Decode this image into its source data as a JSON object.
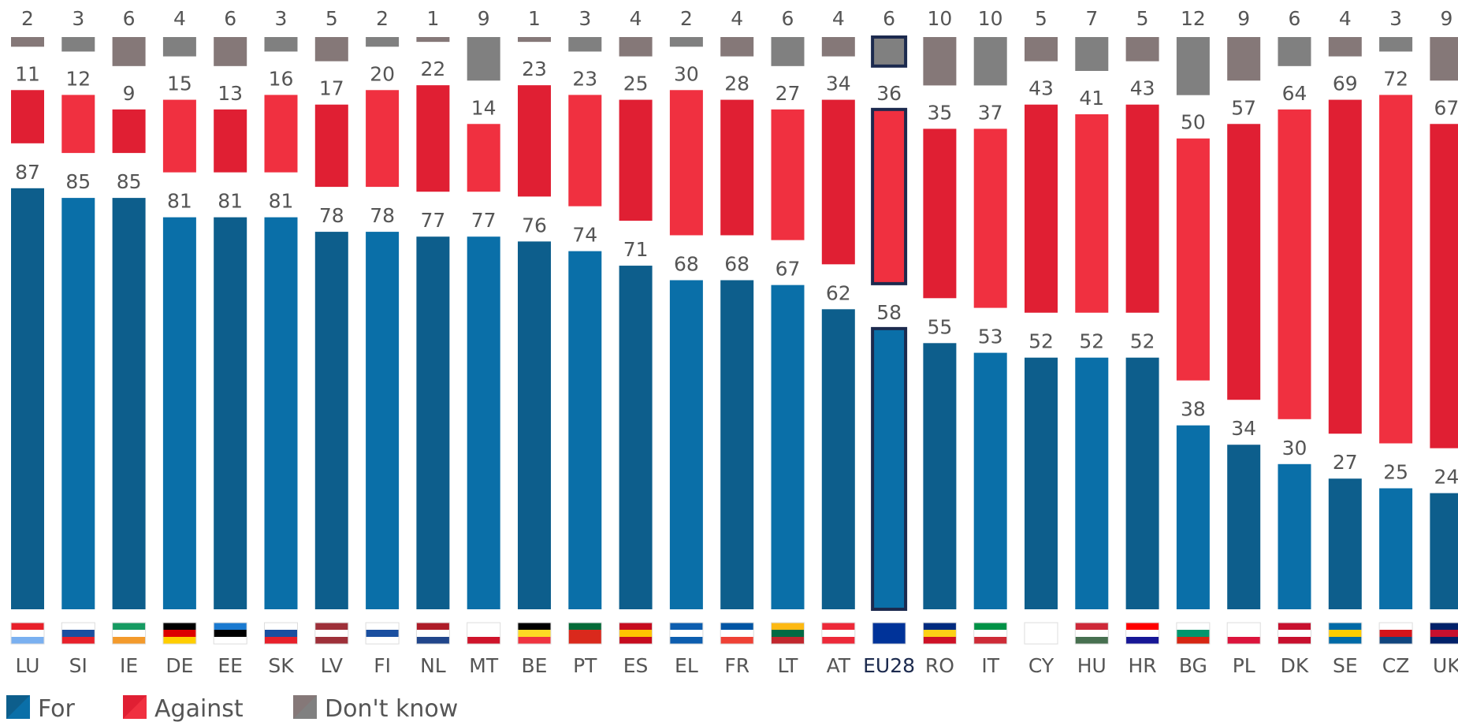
{
  "chart_data": {
    "type": "bar",
    "categories": [
      "LU",
      "SI",
      "IE",
      "DE",
      "EE",
      "SK",
      "LV",
      "FI",
      "NL",
      "MT",
      "BE",
      "PT",
      "ES",
      "EL",
      "FR",
      "LT",
      "AT",
      "EU28",
      "RO",
      "IT",
      "CY",
      "HU",
      "HR",
      "BG",
      "PL",
      "DK",
      "SE",
      "CZ",
      "UK"
    ],
    "series": [
      {
        "name": "For",
        "color": "#0d5e8c",
        "values": [
          87,
          85,
          85,
          81,
          81,
          81,
          78,
          78,
          77,
          77,
          76,
          74,
          71,
          68,
          68,
          67,
          62,
          58,
          55,
          53,
          52,
          52,
          52,
          38,
          34,
          30,
          27,
          25,
          24
        ]
      },
      {
        "name": "Against",
        "color": "#e01f33",
        "values": [
          11,
          12,
          9,
          15,
          13,
          16,
          17,
          20,
          22,
          14,
          23,
          23,
          25,
          30,
          28,
          27,
          34,
          36,
          35,
          37,
          43,
          41,
          43,
          50,
          57,
          64,
          69,
          72,
          67
        ]
      },
      {
        "name": "Don't know",
        "color": "#857878",
        "values": [
          2,
          3,
          6,
          4,
          6,
          3,
          5,
          2,
          1,
          9,
          1,
          3,
          4,
          2,
          4,
          6,
          4,
          6,
          10,
          10,
          5,
          7,
          5,
          12,
          9,
          6,
          4,
          3,
          9
        ]
      }
    ],
    "highlight_index": 17
  }
}
